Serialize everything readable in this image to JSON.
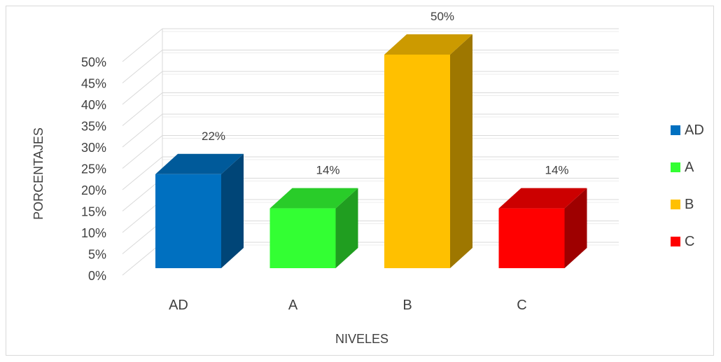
{
  "chart_data": {
    "type": "bar",
    "style": "3d-column",
    "categories": [
      "AD",
      "A",
      "B",
      "C"
    ],
    "values": [
      22,
      14,
      50,
      14
    ],
    "data_labels": [
      "22%",
      "14%",
      "50%",
      "14%"
    ],
    "colors": [
      "#0070c0",
      "#33ff33",
      "#ffc000",
      "#ff0000"
    ],
    "xlabel": "NIVELES",
    "ylabel": "PORCENTAJES",
    "ylim": [
      0,
      50
    ],
    "yticks": [
      "0%",
      "5%",
      "10%",
      "15%",
      "20%",
      "25%",
      "30%",
      "35%",
      "40%",
      "45%",
      "50%"
    ],
    "grid": true,
    "legend_position": "right",
    "legend": [
      {
        "name": "AD",
        "color": "#0070c0"
      },
      {
        "name": "A",
        "color": "#33ff33"
      },
      {
        "name": "B",
        "color": "#ffc000"
      },
      {
        "name": "C",
        "color": "#ff0000"
      }
    ]
  }
}
